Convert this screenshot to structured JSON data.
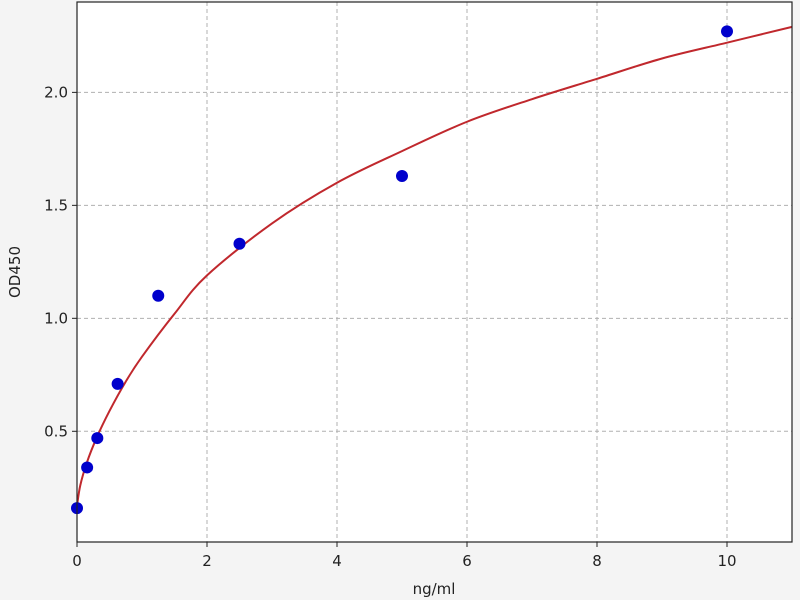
{
  "chart_data": {
    "type": "scatter",
    "title": "",
    "xlabel": "ng/ml",
    "ylabel": "OD450",
    "xlim": [
      0,
      11
    ],
    "ylim": [
      0.01,
      2.4
    ],
    "xticks": [
      0,
      2,
      4,
      6,
      8,
      10
    ],
    "xtick_labels": [
      "0",
      "2",
      "4",
      "6",
      "8",
      "10"
    ],
    "yticks": [
      0.5,
      1.0,
      1.5,
      2.0
    ],
    "ytick_labels": [
      "0.5",
      "1.0",
      "1.5",
      "2.0"
    ],
    "grid": true,
    "point_color": "#0000cc",
    "curve_color": "#c0282d",
    "points": {
      "x": [
        0,
        0.156,
        0.3125,
        0.625,
        1.25,
        2.5,
        5,
        10
      ],
      "y": [
        0.16,
        0.34,
        0.47,
        0.71,
        1.1,
        1.33,
        1.63,
        2.27
      ]
    },
    "fit_curve": {
      "x": [
        0,
        0.05,
        0.15,
        0.3,
        0.5,
        0.75,
        1,
        1.5,
        2,
        3,
        4,
        5,
        6,
        7,
        8,
        9,
        10,
        11
      ],
      "y": [
        0.17,
        0.26,
        0.36,
        0.47,
        0.59,
        0.72,
        0.83,
        1.02,
        1.19,
        1.42,
        1.6,
        1.74,
        1.87,
        1.97,
        2.06,
        2.15,
        2.22,
        2.29
      ]
    }
  }
}
